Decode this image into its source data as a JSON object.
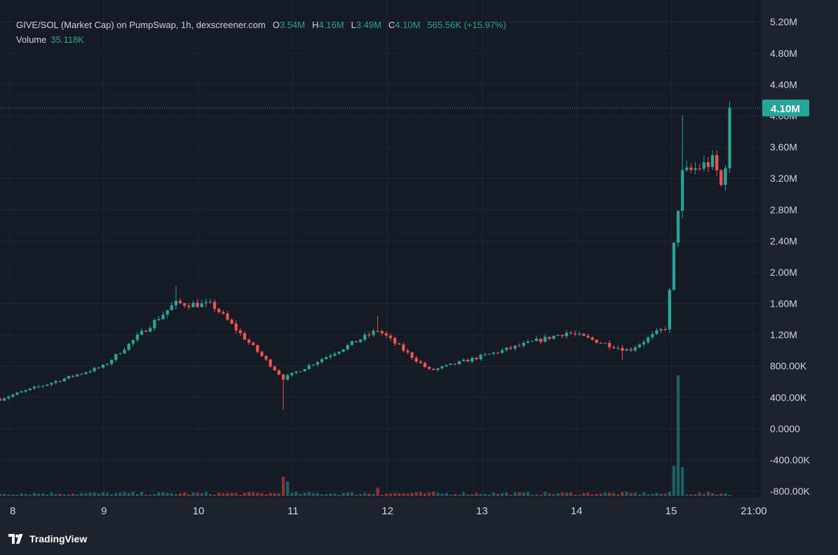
{
  "colors": {
    "background": "#161a25",
    "frame": "#1e222d",
    "grid": "#232733",
    "up": "#26a69a",
    "down": "#ef5350",
    "text": "#d1d4dc",
    "price_label_text": "#ffffff"
  },
  "legend": {
    "title": "GIVE/SOL (Market Cap) on PumpSwap, 1h, dexscreener.com",
    "o_label": "O",
    "o_value": "3.54M",
    "h_label": "H",
    "h_value": "4.16M",
    "l_label": "L",
    "l_value": "3.49M",
    "c_label": "C",
    "c_value": "4.10M",
    "change": "565.56K (+15.97%)",
    "volume_label": "Volume",
    "volume_value": "35.118K"
  },
  "branding": {
    "name": "TradingView",
    "icon": "tradingview-logo-icon"
  },
  "chart_data": {
    "type": "candlestick",
    "title": "GIVE/SOL (Market Cap) on PumpSwap, 1h, dexscreener.com",
    "interval": "1h",
    "y_axis": {
      "tick_labels": [
        "5.20M",
        "4.80M",
        "4.40M",
        "4.00M",
        "3.60M",
        "3.20M",
        "2.80M",
        "2.40M",
        "2.00M",
        "1.60M",
        "1.20M",
        "800.00K",
        "400.00K",
        "0.0000",
        "-400.00K",
        "-800.00K"
      ],
      "tick_values": [
        5200000,
        4800000,
        4400000,
        4000000,
        3600000,
        3200000,
        2800000,
        2400000,
        2000000,
        1600000,
        1200000,
        800000,
        400000,
        0,
        -400000,
        -800000
      ],
      "range": [
        -880000,
        5480000
      ]
    },
    "x_axis": {
      "tick_labels": [
        "8",
        "9",
        "10",
        "11",
        "12",
        "13",
        "14",
        "15",
        "21:00"
      ],
      "range_days": [
        7.9,
        15.95
      ]
    },
    "grid": true,
    "last_price": {
      "label": "4.10M",
      "value": 4100000
    },
    "candle_count": 171,
    "key_points": [
      {
        "t": 7.9,
        "c": 380000
      },
      {
        "t": 9.0,
        "c": 800000
      },
      {
        "t": 9.75,
        "c": 1600000
      },
      {
        "t": 10.15,
        "c": 1580000
      },
      {
        "t": 10.9,
        "c": 640000
      },
      {
        "t": 11.9,
        "c": 1260000
      },
      {
        "t": 12.45,
        "c": 740000
      },
      {
        "t": 13.9,
        "c": 1230000
      },
      {
        "t": 14.55,
        "c": 1000000
      },
      {
        "t": 14.95,
        "c": 1300000
      },
      {
        "t": 15.05,
        "c": 2600000
      },
      {
        "t": 15.12,
        "c": 3250000
      },
      {
        "t": 15.45,
        "c": 3420000
      },
      {
        "t": 15.55,
        "c": 3020000
      },
      {
        "t": 15.62,
        "c": 4100000
      }
    ],
    "volume_peaks": [
      {
        "t": 10.88,
        "v": 0.16
      },
      {
        "t": 10.95,
        "v": 0.12
      },
      {
        "t": 11.9,
        "v": 0.07
      },
      {
        "t": 15.03,
        "v": 0.25
      },
      {
        "t": 15.06,
        "v": 1.0
      },
      {
        "t": 15.1,
        "v": 0.24
      }
    ]
  }
}
